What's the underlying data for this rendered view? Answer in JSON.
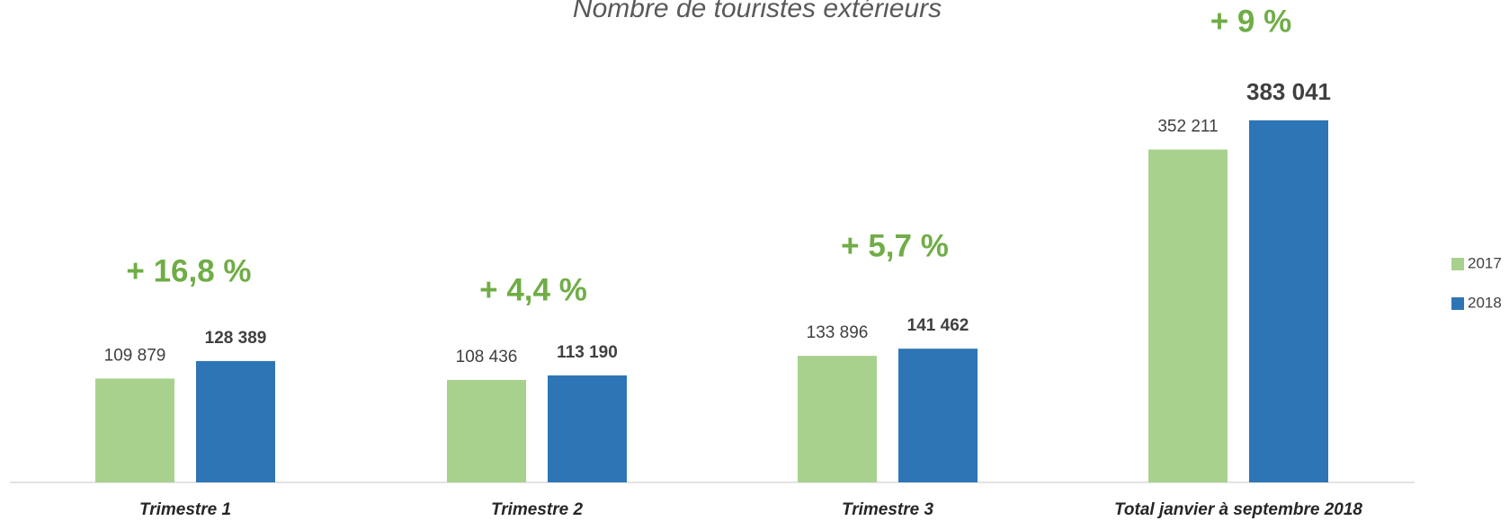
{
  "chart_data": {
    "type": "bar",
    "title": "Nombre de touristes extérieurs",
    "categories": [
      "Trimestre 1",
      "Trimestre 2",
      "Trimestre 3",
      "Total janvier à septembre 2018"
    ],
    "series": [
      {
        "name": "2017",
        "color": "#a9d18e",
        "values": [
          109879,
          108436,
          133896,
          352211
        ],
        "value_labels": [
          "109 879",
          "108 436",
          "133 896",
          "352 211"
        ]
      },
      {
        "name": "2018",
        "color": "#2e75b6",
        "values": [
          128389,
          113190,
          141462,
          383041
        ],
        "value_labels": [
          "128 389",
          "113 190",
          "141 462",
          "383 041"
        ]
      }
    ],
    "annotations": [
      "+ 16,8 %",
      "+ 4,4 %",
      "+ 5,7 %",
      "+ 9 %"
    ],
    "legend": "right"
  }
}
